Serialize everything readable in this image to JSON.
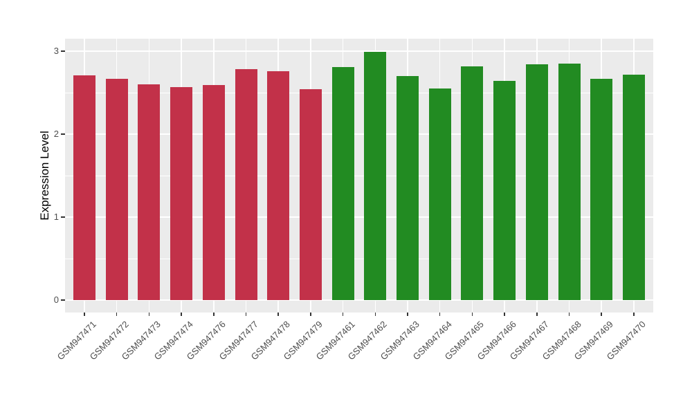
{
  "chart_data": {
    "type": "bar",
    "title": "",
    "xlabel": "",
    "ylabel": "Expression Level",
    "ylim": [
      0,
      3
    ],
    "y_major_ticks": [
      "0",
      "1",
      "2",
      "3"
    ],
    "y_minor_gridlines": [
      0.5,
      1.5,
      2.5
    ],
    "grid": "on",
    "legend_position": "none",
    "panel_background": "#EBEBEB",
    "gridline_color": "#FFFFFF",
    "axis_text_color": "#4D4D4D",
    "colors": {
      "red_group": "#C23149",
      "green_group": "#228B22"
    },
    "categories": [
      "GSM947471",
      "GSM947472",
      "GSM947473",
      "GSM947474",
      "GSM947476",
      "GSM947477",
      "GSM947478",
      "GSM947479",
      "GSM947461",
      "GSM947462",
      "GSM947463",
      "GSM947464",
      "GSM947465",
      "GSM947466",
      "GSM947467",
      "GSM947468",
      "GSM947469",
      "GSM947470"
    ],
    "values": [
      2.71,
      2.67,
      2.6,
      2.57,
      2.59,
      2.78,
      2.76,
      2.54,
      2.81,
      2.99,
      2.7,
      2.55,
      2.82,
      2.64,
      2.84,
      2.85,
      2.67,
      2.72
    ],
    "bars": [
      {
        "label": "GSM947471",
        "value": 2.71,
        "color": "#C23149"
      },
      {
        "label": "GSM947472",
        "value": 2.67,
        "color": "#C23149"
      },
      {
        "label": "GSM947473",
        "value": 2.6,
        "color": "#C23149"
      },
      {
        "label": "GSM947474",
        "value": 2.57,
        "color": "#C23149"
      },
      {
        "label": "GSM947476",
        "value": 2.59,
        "color": "#C23149"
      },
      {
        "label": "GSM947477",
        "value": 2.78,
        "color": "#C23149"
      },
      {
        "label": "GSM947478",
        "value": 2.76,
        "color": "#C23149"
      },
      {
        "label": "GSM947479",
        "value": 2.54,
        "color": "#C23149"
      },
      {
        "label": "GSM947461",
        "value": 2.81,
        "color": "#228B22"
      },
      {
        "label": "GSM947462",
        "value": 2.99,
        "color": "#228B22"
      },
      {
        "label": "GSM947463",
        "value": 2.7,
        "color": "#228B22"
      },
      {
        "label": "GSM947464",
        "value": 2.55,
        "color": "#228B22"
      },
      {
        "label": "GSM947465",
        "value": 2.82,
        "color": "#228B22"
      },
      {
        "label": "GSM947466",
        "value": 2.64,
        "color": "#228B22"
      },
      {
        "label": "GSM947467",
        "value": 2.84,
        "color": "#228B22"
      },
      {
        "label": "GSM947468",
        "value": 2.85,
        "color": "#228B22"
      },
      {
        "label": "GSM947469",
        "value": 2.67,
        "color": "#228B22"
      },
      {
        "label": "GSM947470",
        "value": 2.72,
        "color": "#228B22"
      }
    ]
  }
}
